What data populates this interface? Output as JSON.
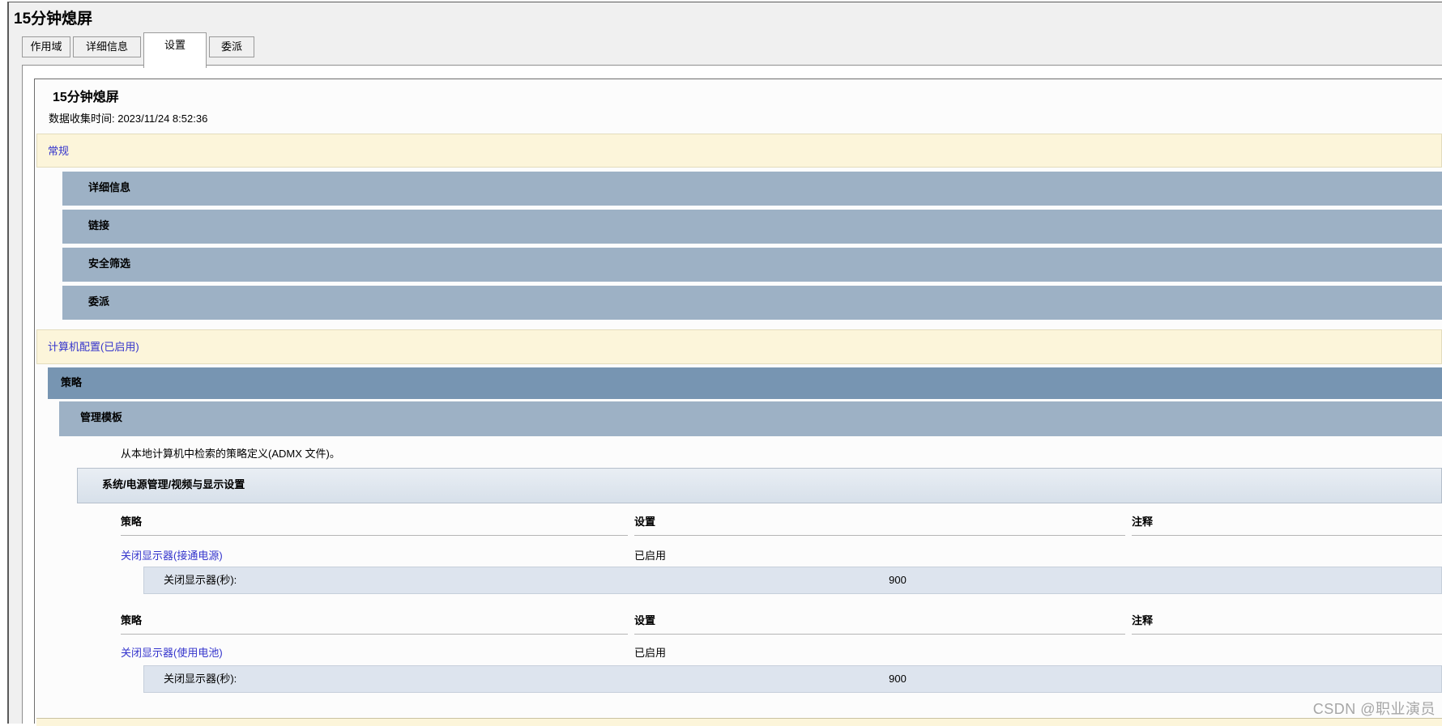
{
  "window": {
    "title": "15分钟熄屏"
  },
  "tabs": [
    {
      "label": "作用域",
      "active": false
    },
    {
      "label": "详细信息",
      "active": false
    },
    {
      "label": "设置",
      "active": true
    },
    {
      "label": "委派",
      "active": false
    }
  ],
  "report": {
    "title": "15分钟熄屏",
    "collect_time": "数据收集时间: 2023/11/24 8:52:36",
    "sections": {
      "general": "常规",
      "general_children": [
        "详细信息",
        "链接",
        "安全筛选",
        "委派"
      ],
      "computer_config": "计算机配置(已启用)",
      "policies": "策略",
      "admin_templates": "管理模板",
      "admx_note": "从本地计算机中检索的策略定义(ADMX 文件)。",
      "policy_path": "系统/电源管理/视频与显示设置"
    },
    "tables": [
      {
        "headers": [
          "策略",
          "设置",
          "注释"
        ],
        "policy": "关闭显示器(接通电源)",
        "setting": "已启用",
        "comment": "",
        "sub_label": "关闭显示器(秒):",
        "sub_value": "900"
      },
      {
        "headers": [
          "策略",
          "设置",
          "注释"
        ],
        "policy": "关闭显示器(使用电池)",
        "setting": "已启用",
        "comment": "",
        "sub_label": "关闭显示器(秒):",
        "sub_value": "900"
      }
    ]
  },
  "watermark": "CSDN @职业演员",
  "colors": {
    "section_cream": "#fcf5da",
    "bar_blue": "#9db1c5",
    "bar_dark_blue": "#7795b2",
    "policy_path_panel": "#dfe7f0",
    "subrow_blue": "#dde4ee",
    "link_blue": "#3333cc",
    "window_bg": "#f0f0f0",
    "watermark_gray": "#a6a6a6"
  }
}
